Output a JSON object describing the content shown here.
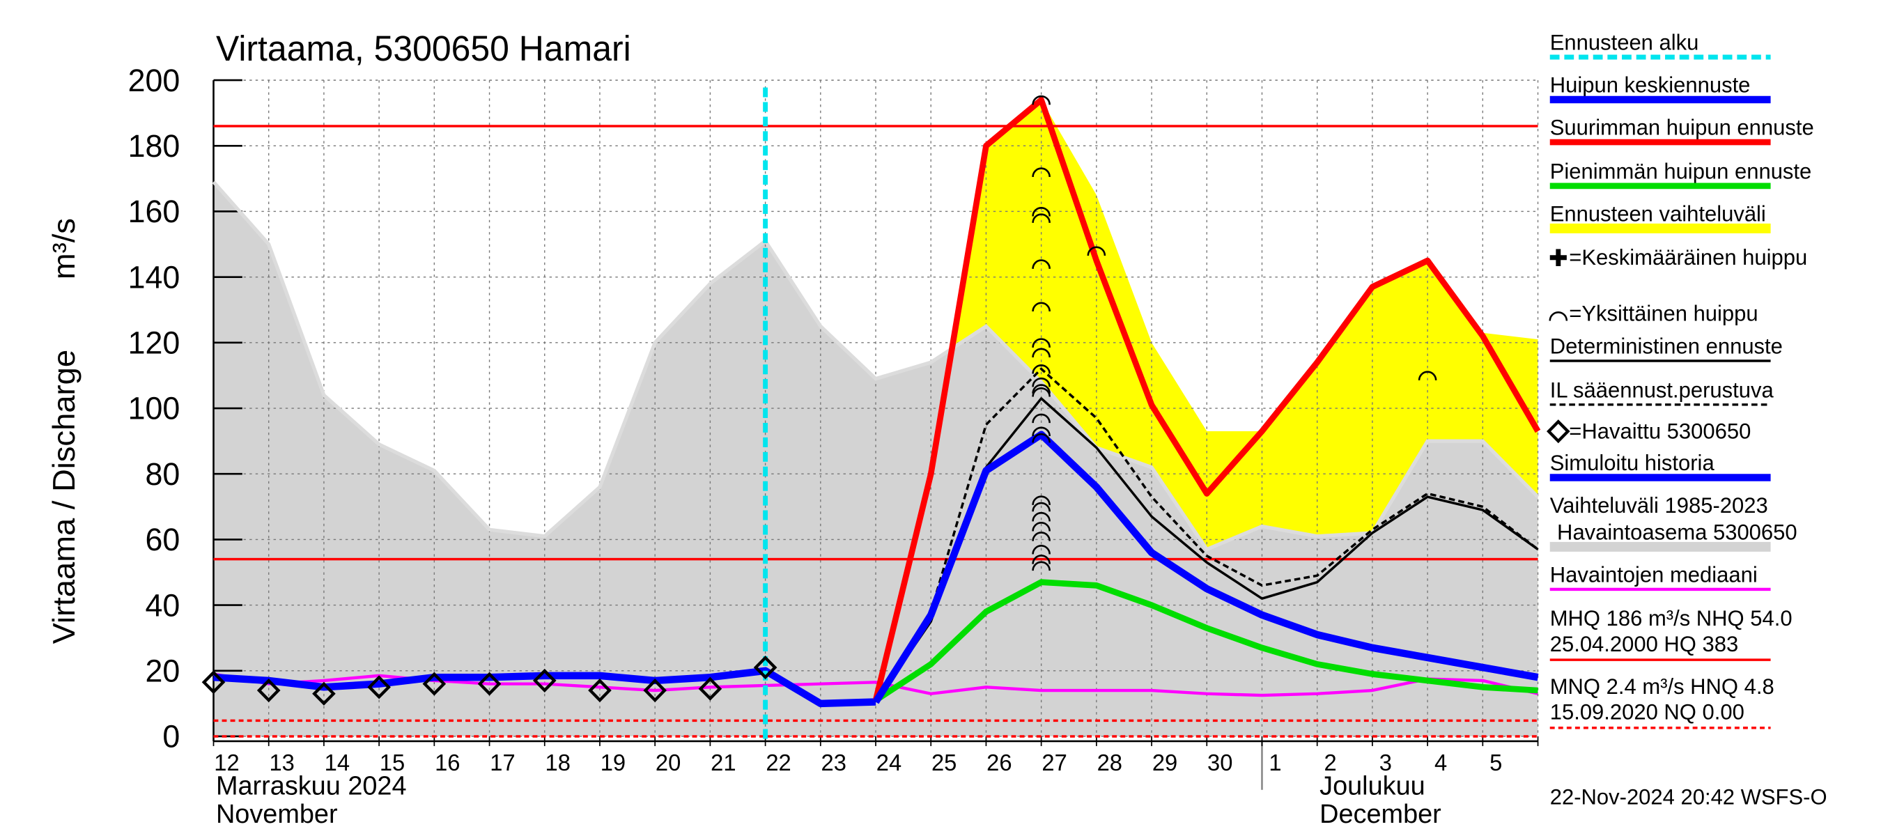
{
  "chart_data": {
    "type": "line",
    "title": "Virtaama, 5300650 Hamari",
    "y_label": "Virtaama / Discharge",
    "y_unit": "m³/s",
    "categories": [
      "12",
      "13",
      "14",
      "15",
      "16",
      "17",
      "18",
      "19",
      "20",
      "21",
      "22",
      "23",
      "24",
      "25",
      "26",
      "27",
      "28",
      "29",
      "30",
      "1",
      "2",
      "3",
      "4",
      "5",
      null
    ],
    "month_labels": [
      "Marraskuu 2024",
      "November",
      "Joulukuu",
      "December"
    ],
    "timestamp": "22-Nov-2024 20:42 WSFS-O",
    "ylim": [
      0,
      200
    ],
    "yticks": [
      0,
      20,
      40,
      60,
      80,
      100,
      120,
      140,
      160,
      180,
      200
    ],
    "grid": true,
    "series": [
      {
        "name": "Ennusteen alku",
        "kind": "vline",
        "color": "#00e5ee",
        "x": 10
      },
      {
        "name": "Huipun keskiennuste",
        "kind": "line",
        "color": "#0000ff",
        "width": 6,
        "values": [
          null,
          null,
          null,
          null,
          null,
          null,
          null,
          null,
          null,
          null,
          null,
          null,
          10.5,
          37,
          81,
          92,
          76,
          56,
          45,
          37,
          31,
          27,
          24,
          21,
          18
        ]
      },
      {
        "name": "Suurimman huipun ennuste",
        "kind": "line",
        "color": "#ff0000",
        "width": 5,
        "values": [
          null,
          null,
          null,
          null,
          null,
          null,
          null,
          null,
          null,
          null,
          null,
          null,
          11,
          80,
          180,
          194,
          145,
          101,
          74,
          93,
          114,
          137,
          145,
          122,
          93
        ]
      },
      {
        "name": "Pienimmän huipun ennuste",
        "kind": "line",
        "color": "#00dd00",
        "width": 5,
        "values": [
          null,
          null,
          null,
          null,
          null,
          null,
          null,
          null,
          null,
          null,
          null,
          null,
          11,
          22,
          38,
          47,
          46,
          40,
          33,
          27,
          22,
          19,
          17,
          15,
          14
        ]
      },
      {
        "name": "Ennusteen vaihteluväli",
        "kind": "area",
        "color": "#ffff00",
        "values": [
          null,
          null,
          null,
          null,
          null,
          null,
          null,
          null,
          null,
          null,
          null,
          null,
          11,
          80,
          180,
          194,
          165,
          120,
          93,
          93,
          114,
          137,
          145,
          123,
          121
        ],
        "lower": [
          null,
          null,
          null,
          null,
          null,
          null,
          null,
          null,
          null,
          null,
          null,
          null,
          11,
          22,
          38,
          47,
          46,
          40,
          33,
          27,
          22,
          19,
          17,
          15,
          14
        ]
      },
      {
        "name": "=Keskimääräinen huippu",
        "kind": "plus",
        "color": "#000000"
      },
      {
        "name": "=Yksittäinen huippu",
        "kind": "arc",
        "color": "#000000",
        "x": [
          15,
          15,
          15,
          15,
          15,
          15,
          15,
          15,
          15,
          15,
          15,
          15,
          15,
          15,
          15,
          15,
          15,
          15,
          15,
          15,
          15,
          15,
          15,
          16,
          22
        ],
        "values": [
          194,
          172,
          160,
          158,
          144,
          131,
          120,
          117,
          112,
          108,
          106,
          105,
          97,
          93,
          91,
          72,
          70,
          67,
          64,
          61,
          57,
          54,
          52,
          148,
          110
        ]
      },
      {
        "name": "Deterministinen ennuste",
        "kind": "line",
        "color": "#000000",
        "width": 2,
        "values": [
          null,
          null,
          null,
          null,
          null,
          null,
          null,
          null,
          null,
          null,
          null,
          null,
          10.5,
          35,
          82,
          103,
          88,
          67,
          53,
          42,
          47,
          62,
          73,
          69,
          57
        ]
      },
      {
        "name": "IL sääennust.perustuva",
        "kind": "line",
        "color": "#000000",
        "width": 2,
        "dash": true,
        "values": [
          null,
          null,
          null,
          null,
          null,
          null,
          null,
          null,
          null,
          null,
          null,
          null,
          10.5,
          38,
          95,
          112,
          97,
          73,
          55,
          46,
          49,
          63,
          74,
          70,
          57
        ]
      },
      {
        "name": "=Havaittu 5300650",
        "kind": "diamond",
        "color": "#000000",
        "values": [
          16.5,
          14,
          13,
          15,
          16,
          16,
          17,
          14,
          14,
          14.5,
          21,
          null,
          null,
          null,
          null,
          null,
          null,
          null,
          null,
          null,
          null,
          null,
          null,
          null,
          null
        ]
      },
      {
        "name": "Simuloitu historia",
        "kind": "line",
        "color": "#0000ff",
        "width": 6,
        "values": [
          18,
          17,
          15,
          16,
          18,
          18,
          18.5,
          18.5,
          17,
          18,
          20,
          10,
          10.5,
          null,
          null,
          null,
          null,
          null,
          null,
          null,
          null,
          null,
          null,
          null,
          null
        ]
      },
      {
        "name": "Vaihteluväli 1985-2023",
        "name2": "Havaintoasema 5300650",
        "kind": "area",
        "color": "#d3d3d3",
        "values": [
          169,
          150,
          104,
          89,
          81,
          63,
          61,
          76,
          120,
          138,
          151,
          125,
          109,
          114,
          125,
          108,
          88,
          82,
          57,
          64,
          61,
          62,
          90,
          90,
          73
        ]
      },
      {
        "name": "Havaintojen mediaani",
        "kind": "line",
        "color": "#ff00ff",
        "width": 2.5,
        "values": [
          19,
          16,
          17,
          18.5,
          17,
          16,
          16,
          15,
          14,
          15,
          15.5,
          16,
          16.5,
          13,
          15,
          14,
          14,
          14,
          13,
          12.5,
          13,
          14,
          17.5,
          17,
          13
        ]
      }
    ],
    "reference_lines": [
      {
        "label": "MHQ  186 m³/s NHQ 54.0",
        "label2": "25.04.2000 HQ  383",
        "values": [
          186,
          54
        ],
        "color": "#ff0000",
        "dash": false
      },
      {
        "label": "MNQ  2.4 m³/s HNQ  4.8",
        "label2": "15.09.2020 NQ 0.00",
        "values": [
          4.8,
          0
        ],
        "color": "#ff0000",
        "dash": true
      }
    ]
  }
}
